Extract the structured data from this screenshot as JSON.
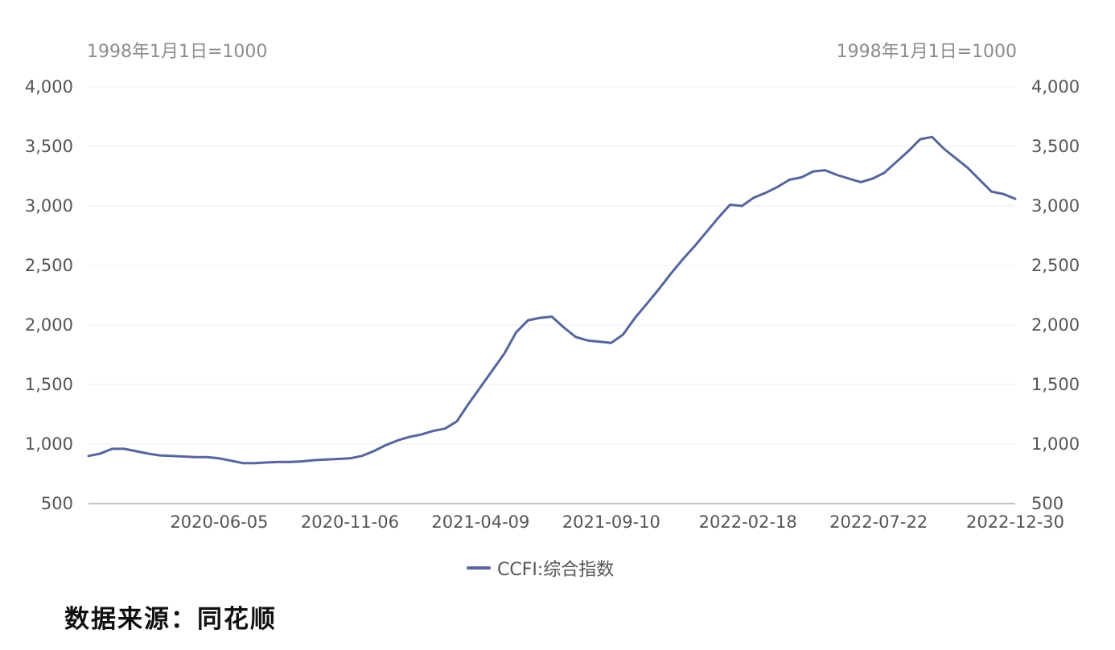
{
  "chart_data": {
    "type": "line",
    "unit_left": "1998年1月1日=1000",
    "unit_right": "1998年1月1日=1000",
    "ylim": [
      500,
      4000
    ],
    "yticks": [
      "4,000",
      "3,500",
      "3,000",
      "2,500",
      "2,000",
      "1,500",
      "1,000",
      "500"
    ],
    "ytick_values": [
      4000,
      3500,
      3000,
      2500,
      2000,
      1500,
      1000,
      500
    ],
    "xlim": [
      "2020-01-03",
      "2022-12-30"
    ],
    "xticks": [
      "2020-06-05",
      "2020-11-06",
      "2021-04-09",
      "2021-09-10",
      "2022-02-18",
      "2022-07-22",
      "2022-12-30"
    ],
    "grid": true,
    "legend_position": "bottom",
    "color": "#56659b",
    "series": [
      {
        "name": "CCFI:综合指数",
        "points": [
          [
            "2020-01-03",
            900
          ],
          [
            "2020-01-17",
            920
          ],
          [
            "2020-01-31",
            960
          ],
          [
            "2020-02-14",
            960
          ],
          [
            "2020-02-28",
            940
          ],
          [
            "2020-03-13",
            920
          ],
          [
            "2020-03-27",
            905
          ],
          [
            "2020-04-10",
            900
          ],
          [
            "2020-04-24",
            895
          ],
          [
            "2020-05-08",
            890
          ],
          [
            "2020-05-22",
            890
          ],
          [
            "2020-06-05",
            880
          ],
          [
            "2020-06-19",
            860
          ],
          [
            "2020-07-03",
            840
          ],
          [
            "2020-07-17",
            840
          ],
          [
            "2020-07-31",
            845
          ],
          [
            "2020-08-14",
            850
          ],
          [
            "2020-08-28",
            850
          ],
          [
            "2020-09-11",
            855
          ],
          [
            "2020-09-25",
            865
          ],
          [
            "2020-10-09",
            870
          ],
          [
            "2020-10-23",
            875
          ],
          [
            "2020-11-06",
            880
          ],
          [
            "2020-11-20",
            900
          ],
          [
            "2020-12-04",
            940
          ],
          [
            "2020-12-18",
            990
          ],
          [
            "2021-01-01",
            1030
          ],
          [
            "2021-01-15",
            1060
          ],
          [
            "2021-01-29",
            1080
          ],
          [
            "2021-02-12",
            1110
          ],
          [
            "2021-02-26",
            1130
          ],
          [
            "2021-03-12",
            1190
          ],
          [
            "2021-03-26",
            1340
          ],
          [
            "2021-04-09",
            1480
          ],
          [
            "2021-04-23",
            1620
          ],
          [
            "2021-05-07",
            1760
          ],
          [
            "2021-05-21",
            1940
          ],
          [
            "2021-06-04",
            2040
          ],
          [
            "2021-06-18",
            2060
          ],
          [
            "2021-07-02",
            2070
          ],
          [
            "2021-07-16",
            1980
          ],
          [
            "2021-07-30",
            1900
          ],
          [
            "2021-08-13",
            1870
          ],
          [
            "2021-08-27",
            1860
          ],
          [
            "2021-09-10",
            1850
          ],
          [
            "2021-09-24",
            1920
          ],
          [
            "2021-10-08",
            2060
          ],
          [
            "2021-10-22",
            2180
          ],
          [
            "2021-11-05",
            2300
          ],
          [
            "2021-11-19",
            2430
          ],
          [
            "2021-12-03",
            2550
          ],
          [
            "2021-12-17",
            2660
          ],
          [
            "2021-12-31",
            2780
          ],
          [
            "2022-01-14",
            2900
          ],
          [
            "2022-01-28",
            3010
          ],
          [
            "2022-02-11",
            3000
          ],
          [
            "2022-02-25",
            3070
          ],
          [
            "2022-03-11",
            3110
          ],
          [
            "2022-03-25",
            3160
          ],
          [
            "2022-04-08",
            3220
          ],
          [
            "2022-04-22",
            3240
          ],
          [
            "2022-05-06",
            3290
          ],
          [
            "2022-05-20",
            3300
          ],
          [
            "2022-06-03",
            3260
          ],
          [
            "2022-06-17",
            3230
          ],
          [
            "2022-07-01",
            3200
          ],
          [
            "2022-07-15",
            3230
          ],
          [
            "2022-07-29",
            3280
          ],
          [
            "2022-08-12",
            3370
          ],
          [
            "2022-08-26",
            3460
          ],
          [
            "2022-09-09",
            3560
          ],
          [
            "2022-09-23",
            3580
          ],
          [
            "2022-10-07",
            3480
          ],
          [
            "2022-10-21",
            3400
          ],
          [
            "2022-11-04",
            3320
          ],
          [
            "2022-11-18",
            3220
          ],
          [
            "2022-12-02",
            3120
          ],
          [
            "2022-12-16",
            3100
          ],
          [
            "2022-12-30",
            3060
          ]
        ]
      }
    ]
  },
  "legend_label": "CCFI:综合指数",
  "source_note": "数据来源：同花顺"
}
